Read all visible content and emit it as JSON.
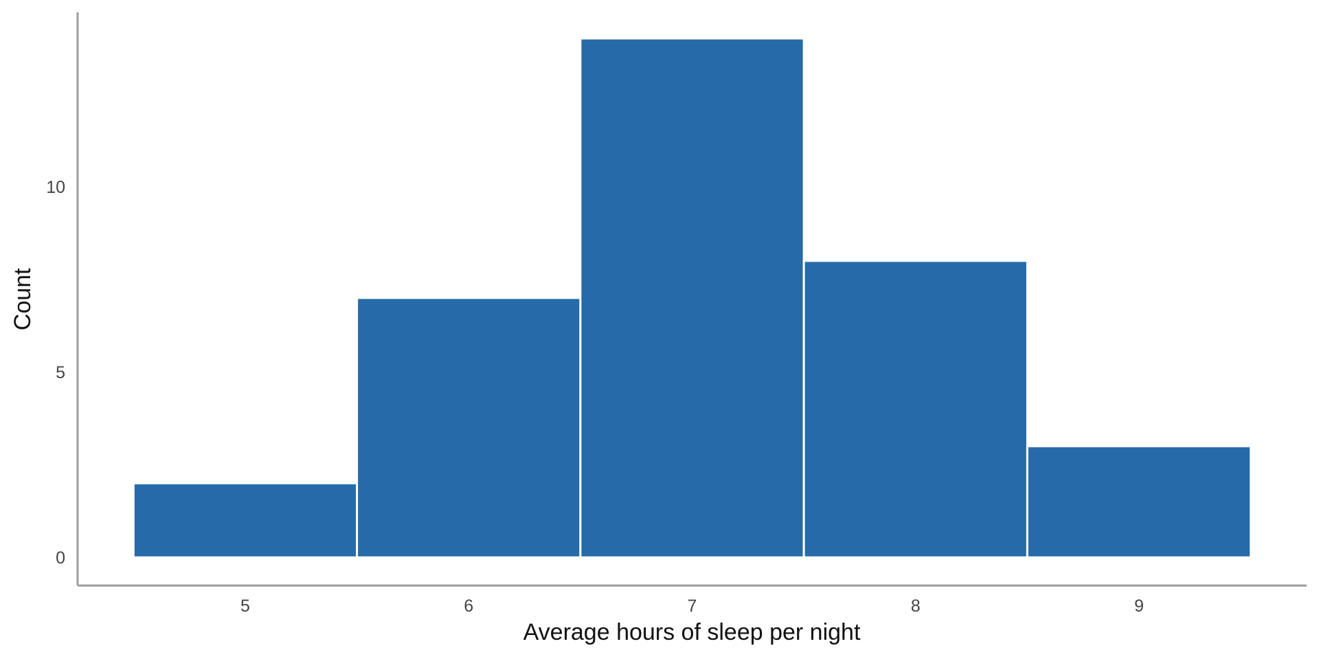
{
  "chart_data": {
    "type": "bar",
    "title": "",
    "xlabel": "Average hours of sleep per night",
    "ylabel": "Count",
    "categories": [
      "5",
      "6",
      "7",
      "8",
      "9"
    ],
    "x": [
      5,
      6,
      7,
      8,
      9
    ],
    "values": [
      2,
      7,
      14,
      8,
      3
    ],
    "bin_width": 1,
    "xlim": [
      4.25,
      9.75
    ],
    "ylim": [
      0,
      14.6
    ],
    "y_ticks": [
      0,
      5,
      10
    ],
    "y_tick_labels": [
      "0",
      "5",
      "10"
    ],
    "grid": false,
    "legend": "none",
    "bar_color": "#266ba8",
    "bar_edge_color": "#ffffff",
    "axis_color": "#9e9e9e"
  }
}
